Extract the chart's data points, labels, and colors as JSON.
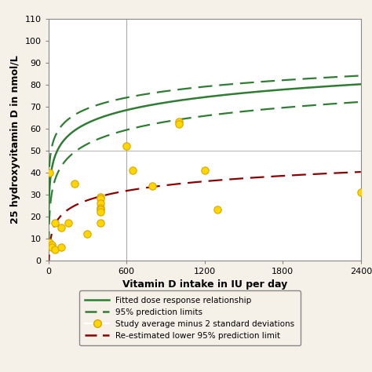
{
  "xlabel": "Vitamin D intake in IU per day",
  "ylabel": "25 hydroxyvitamin D in nmol/L",
  "xlim": [
    0,
    2400
  ],
  "ylim": [
    0,
    110
  ],
  "xticks": [
    0,
    600,
    1200,
    1800,
    2400
  ],
  "yticks": [
    0,
    10,
    20,
    30,
    40,
    50,
    60,
    70,
    80,
    90,
    100,
    110
  ],
  "plot_bg_color": "#ffffff",
  "fig_bg_color": "#f5f0e8",
  "vline_x": 600,
  "scatter_points": [
    [
      10,
      40
    ],
    [
      10,
      8
    ],
    [
      25,
      7
    ],
    [
      25,
      6
    ],
    [
      50,
      5
    ],
    [
      50,
      17
    ],
    [
      100,
      15
    ],
    [
      100,
      6
    ],
    [
      150,
      17
    ],
    [
      200,
      35
    ],
    [
      300,
      12
    ],
    [
      400,
      29
    ],
    [
      400,
      28
    ],
    [
      400,
      26
    ],
    [
      400,
      24
    ],
    [
      400,
      23
    ],
    [
      400,
      22
    ],
    [
      400,
      17
    ],
    [
      600,
      52
    ],
    [
      650,
      41
    ],
    [
      800,
      34
    ],
    [
      1000,
      63
    ],
    [
      1000,
      62
    ],
    [
      1200,
      41
    ],
    [
      1300,
      23
    ],
    [
      2400,
      31
    ]
  ],
  "scatter_color": "#FFD700",
  "scatter_edgecolor": "#DAA500",
  "fitted_color": "#2e7d32",
  "lower95_color": "#8b0000",
  "fitted_linewidth": 1.8,
  "dashed_linewidth": 1.6,
  "a_fit": 14.0,
  "b_fit": 8.5,
  "a_upper": 28.0,
  "b_upper": 7.2,
  "a_lower_green": 0.5,
  "b_lower_green": 9.2,
  "a_red": -8.0,
  "b_red": 6.2,
  "legend_labels": [
    "Fitted dose response relationship",
    "95% prediction limits",
    "Study average minus 2 standard deviations",
    "Re-estimated lower 95% prediction limit"
  ]
}
